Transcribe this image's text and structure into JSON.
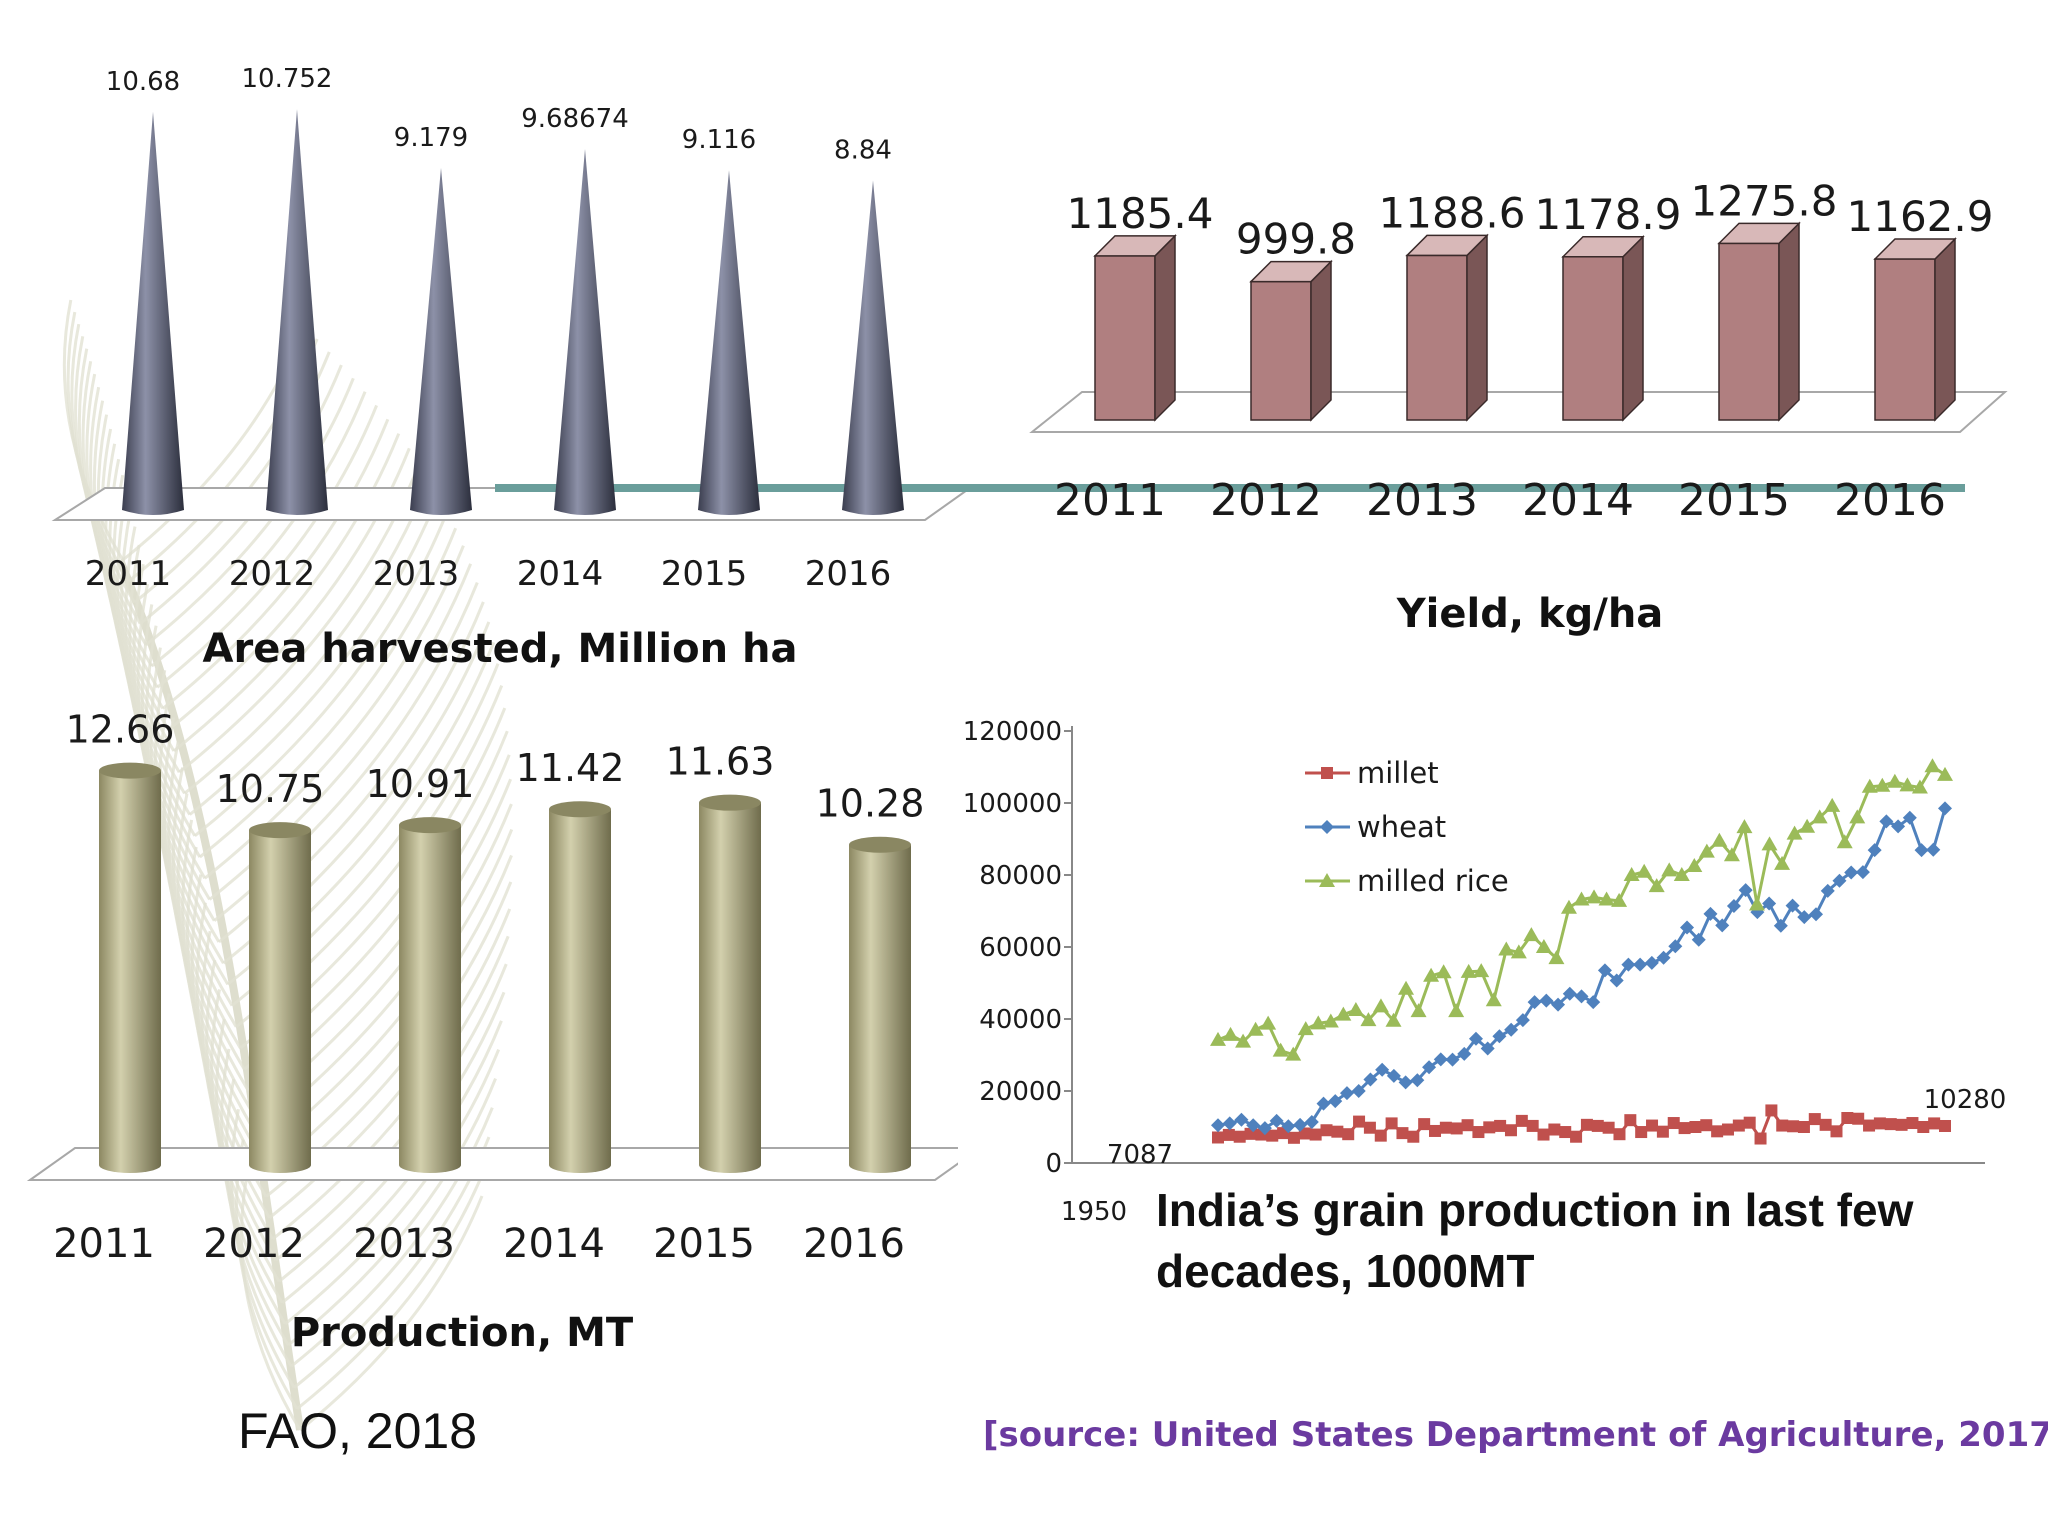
{
  "chart_data": [
    {
      "type": "bar",
      "title": "Area harvested, Million ha",
      "categories": [
        "2011",
        "2012",
        "2013",
        "2014",
        "2015",
        "2016"
      ],
      "values": [
        10.68,
        10.752,
        9.179,
        9.68674,
        9.116,
        8.84
      ],
      "value_labels": [
        "10.68",
        "10.752",
        "9.179",
        "9.68674",
        "9.116",
        "8.84"
      ],
      "mark": "cone",
      "color": "#4e5265"
    },
    {
      "type": "bar",
      "title": "Yield, kg/ha",
      "categories": [
        "2011",
        "2012",
        "2013",
        "2014",
        "2015",
        "2016"
      ],
      "values": [
        1185.4,
        999.8,
        1188.6,
        1178.9,
        1275.8,
        1162.9
      ],
      "value_labels": [
        "1185.4",
        "999.8",
        "1188.6",
        "1178.9",
        "1275.8",
        "1162.9"
      ],
      "mark": "box",
      "color": "#b07f80"
    },
    {
      "type": "bar",
      "title": "Production, MT",
      "categories": [
        "2011",
        "2012",
        "2013",
        "2014",
        "2015",
        "2016"
      ],
      "values": [
        12.66,
        10.75,
        10.91,
        11.42,
        11.63,
        10.28
      ],
      "value_labels": [
        "12.66",
        "10.75",
        "10.91",
        "11.42",
        "11.63",
        "10.28"
      ],
      "mark": "cylinder",
      "color": "#b8b48e"
    },
    {
      "type": "line",
      "title": "India’s grain production in last few decades, 1000MT",
      "x_start_label": "1950",
      "ylim": [
        0,
        120000
      ],
      "yticks": [
        "0",
        "20000",
        "40000",
        "60000",
        "80000",
        "100000",
        "120000"
      ],
      "legend": "top-left",
      "annotations": [
        {
          "text": "7087",
          "series": "millet",
          "at": "first"
        },
        {
          "text": "10280",
          "series": "millet",
          "at": "last"
        }
      ],
      "series": [
        {
          "name": "millet",
          "color": "#c0504d",
          "marker": "square",
          "values": [
            7087,
            7800,
            7300,
            8100,
            7900,
            7600,
            8300,
            7000,
            8200,
            7900,
            9100,
            8700,
            8000,
            11500,
            9800,
            7600,
            11000,
            8300,
            7300,
            10800,
            8900,
            9800,
            9600,
            10500,
            8600,
            9900,
            10300,
            9100,
            11700,
            10300,
            7900,
            9300,
            8600,
            7300,
            10600,
            10300,
            9800,
            8000,
            11900,
            8600,
            10400,
            8700,
            11100,
            9700,
            10000,
            10500,
            8800,
            9300,
            10400,
            11200,
            6800,
            14600,
            10400,
            10200,
            10000,
            12200,
            10600,
            8800,
            12500,
            12300,
            10400,
            11000,
            10800,
            10600,
            11100,
            10000,
            11000,
            10280
          ]
        },
        {
          "name": "wheat",
          "color": "#4f81bd",
          "marker": "diamond",
          "values": [
            10500,
            11000,
            12000,
            10500,
            9700,
            11700,
            10200,
            10600,
            11400,
            16500,
            17200,
            19400,
            20000,
            23200,
            25900,
            24200,
            22400,
            23000,
            26600,
            28800,
            28700,
            30300,
            34500,
            31800,
            35200,
            37000,
            39700,
            44700,
            45100,
            44000,
            47000,
            46300,
            44700,
            53500,
            50700,
            55100,
            55100,
            55600,
            57000,
            60200,
            65400,
            62000,
            69200,
            66000,
            71400,
            75800,
            69700,
            72100,
            65900,
            71500,
            68300,
            69100,
            75600,
            78400,
            80700,
            80800,
            86900,
            94900,
            93500,
            95900,
            86900,
            87000,
            98500
          ]
        },
        {
          "name": "milled rice",
          "color": "#9bbb59",
          "marker": "triangle",
          "values": [
            34200,
            35600,
            33700,
            37000,
            38700,
            31200,
            30100,
            37200,
            38800,
            39300,
            41200,
            42500,
            39700,
            43500,
            39500,
            48400,
            42200,
            52000,
            53000,
            42200,
            53100,
            53300,
            45200,
            59300,
            58500,
            63300,
            60000,
            56900,
            70900,
            73200,
            73800,
            73200,
            72800,
            80000,
            80900,
            76900,
            81300,
            80000,
            82500,
            86500,
            89500,
            85500,
            93300,
            71800,
            88500,
            83100,
            91500,
            93400,
            96000,
            99200,
            89100,
            96000,
            104500,
            104800,
            105900,
            104900,
            104300,
            110200,
            107800
          ]
        }
      ]
    }
  ],
  "notes": {
    "fao": "FAO, 2018",
    "usda": "[source: United States Department of Agriculture, 2017]"
  }
}
